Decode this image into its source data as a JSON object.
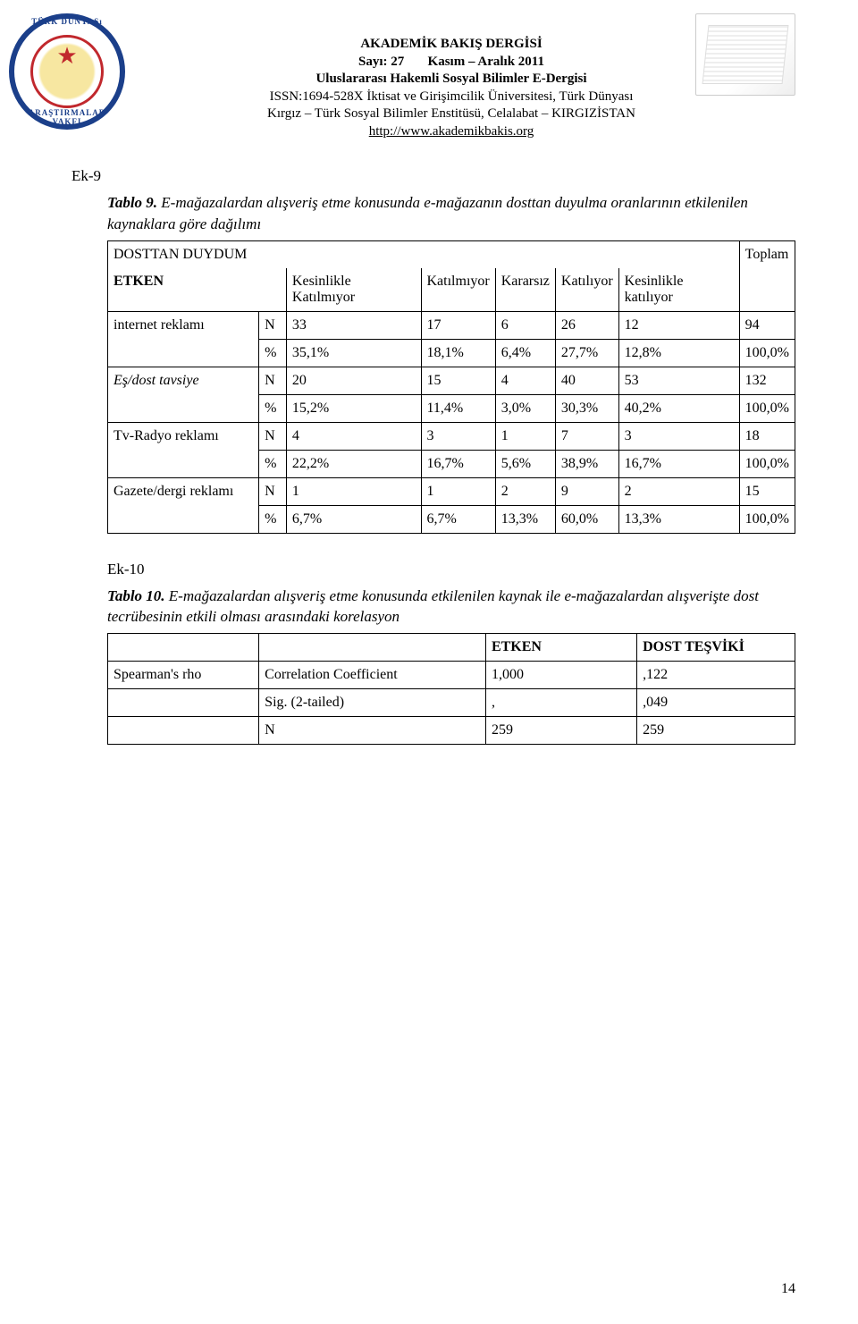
{
  "header": {
    "line1_a": "AKADEMİK BAKIŞ DERGİSİ",
    "line2_a": "Sayı: 27",
    "line2_b": "Kasım – Aralık 2011",
    "line3": "Uluslararası Hakemli Sosyal Bilimler E-Dergisi",
    "line4": "ISSN:1694-528X İktisat ve Girişimcilik Üniversitesi, Türk Dünyası",
    "line5": "Kırgız – Türk Sosyal Bilimler Enstitüsü, Celalabat – KIRGIZİSTAN",
    "line6": "http://www.akademikbakis.org",
    "seal_top": "TÜRK DÜNYASı",
    "seal_bottom": "ARAŞTIRMALAR VAKFI"
  },
  "ek9": {
    "label": "Ek-9",
    "caption_bold": "Tablo 9.",
    "caption_rest": " E-mağazalardan alışveriş etme konusunda e-mağazanın dosttan duyulma oranlarının etkilenilen kaynaklara göre dağılımı",
    "header_row1_left": "DOSTTAN DUYDUM",
    "header_row1_right": "Toplam",
    "header_row2_col1": "ETKEN",
    "header_row2_col2": "Kesinlikle Katılmıyor",
    "header_row2_col3": "Katılmıyor",
    "header_row2_col4": "Kararsız",
    "header_row2_col5": "Katılıyor",
    "header_row2_col6": "Kesinlikle katılıyor",
    "rows": [
      {
        "label": "internet reklamı",
        "italic": false,
        "n": [
          "33",
          "17",
          "6",
          "26",
          "12",
          "94"
        ],
        "p": [
          "35,1%",
          "18,1%",
          "6,4%",
          "27,7%",
          "12,8%",
          "100,0%"
        ]
      },
      {
        "label": "Eş/dost tavsiye",
        "italic": true,
        "n": [
          "20",
          "15",
          "4",
          "40",
          "53",
          "132"
        ],
        "p": [
          "15,2%",
          "11,4%",
          "3,0%",
          "30,3%",
          "40,2%",
          "100,0%"
        ]
      },
      {
        "label": "Tv-Radyo reklamı",
        "italic": false,
        "n": [
          "4",
          "3",
          "1",
          "7",
          "3",
          "18"
        ],
        "p": [
          "22,2%",
          "16,7%",
          "5,6%",
          "38,9%",
          "16,7%",
          "100,0%"
        ]
      },
      {
        "label": "Gazete/dergi reklamı",
        "italic": false,
        "n": [
          "1",
          "1",
          "2",
          "9",
          "2",
          "15"
        ],
        "p": [
          "6,7%",
          "6,7%",
          "13,3%",
          "60,0%",
          "13,3%",
          "100,0%"
        ]
      }
    ],
    "n_sym": "N",
    "pct_sym": "%"
  },
  "ek10": {
    "label": "Ek-10",
    "caption_bold": "Tablo 10.",
    "caption_rest": " E-mağazalardan alışveriş etme konusunda etkilenilen kaynak ile e-mağazalardan alışverişte dost tecrübesinin etkili olması arasındaki korelasyon",
    "col1": "ETKEN",
    "col2": "DOST TEŞVİKİ",
    "r1_label": "Spearman's rho",
    "r1_stat": "Correlation Coefficient",
    "r1_v1": "1,000",
    "r1_v2": ",122",
    "r2_stat": "Sig. (2-tailed)",
    "r2_v1": ",",
    "r2_v2": ",049",
    "r3_stat": "N",
    "r3_v1": "259",
    "r3_v2": "259"
  },
  "page_number": "14"
}
